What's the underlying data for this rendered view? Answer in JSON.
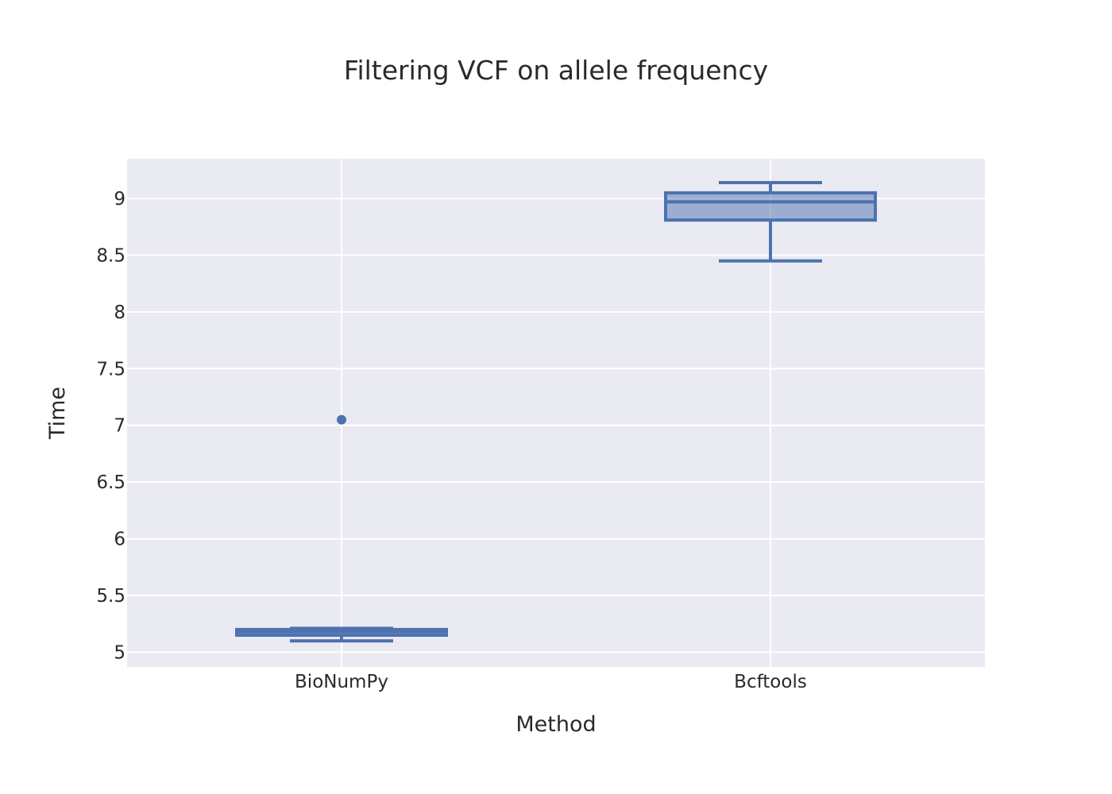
{
  "chart_data": {
    "type": "box",
    "title": "Filtering VCF on allele frequency",
    "xlabel": "Method",
    "ylabel": "Time",
    "categories": [
      "BioNumPy",
      "Bcftools"
    ],
    "ylim": [
      4.87,
      9.35
    ],
    "yticks": [
      "5",
      "5.5",
      "6",
      "6.5",
      "7",
      "7.5",
      "8",
      "8.5",
      "9"
    ],
    "grid": true,
    "boxes": [
      {
        "category": "BioNumPy",
        "whisker_low": 5.1,
        "q1": 5.15,
        "median": 5.18,
        "q3": 5.2,
        "whisker_high": 5.21,
        "outliers": [
          7.05
        ]
      },
      {
        "category": "Bcftools",
        "whisker_low": 8.45,
        "q1": 8.81,
        "median": 8.97,
        "q3": 9.05,
        "whisker_high": 9.14,
        "outliers": []
      }
    ],
    "colors": {
      "box_line": "#4c72b0",
      "box_fill": "rgba(76,114,176,0.5)",
      "plot_bg": "#eaeaf2",
      "grid": "#ffffff",
      "text": "#2a2a2a"
    }
  }
}
